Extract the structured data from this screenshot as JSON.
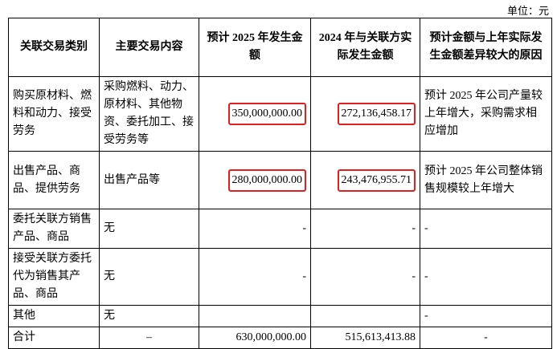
{
  "header": {
    "unit": "单位：元"
  },
  "table": {
    "columns": [
      "关联交易类别",
      "主要交易内容",
      "预计 2025 年发生金额",
      "2024 年与关联方实际发生金额",
      "预计金额与上年实际发生金额差异较大的原因"
    ],
    "rows": [
      [
        "购买原材料、燃料和动力、接受劳务",
        "采购燃料、动力、原材料、其他物资、委托加工、接受劳务等",
        "350,000,000.00",
        "272,136,458.17",
        "预计 2025 年公司产量较上年增大，采购需求相应增加"
      ],
      [
        "出售产品、商品、提供劳务",
        "出售产品等",
        "280,000,000.00",
        "243,476,955.71",
        "预计 2025 年公司整体销售规模较上年增大"
      ],
      [
        "委托关联方销售产品、商品",
        "无",
        "-",
        "-",
        "-"
      ],
      [
        "接受关联方委托代为销售其产品、商品",
        "无",
        "-",
        "-",
        "-"
      ],
      [
        "其他",
        "无",
        null,
        null,
        "-"
      ],
      [
        "合计",
        "–",
        "630,000,000.00",
        "515,613,413.88",
        "-"
      ]
    ]
  }
}
